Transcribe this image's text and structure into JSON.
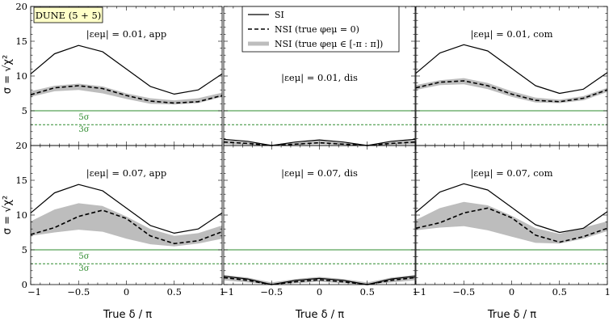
{
  "figure": {
    "badge": "DUNE (5 + 5)",
    "ylabel": "σ = √χ²",
    "xlabel": "True δ / π",
    "x_ticks": [
      "−1",
      "−0.5",
      "0",
      "0.5",
      "1"
    ],
    "y_ticks": [
      "0",
      "5",
      "10",
      "15",
      "20"
    ],
    "legend": [
      {
        "label": "SI",
        "style": "solid"
      },
      {
        "label": "NSI (true φeμ = 0)",
        "style": "dashed"
      },
      {
        "label": "NSI (true φeμ ∈ [-π : π])",
        "style": "band"
      }
    ],
    "sigma_lines": {
      "five": "5σ",
      "three": "3σ"
    },
    "colors": {
      "band": "#bdbdbd",
      "sigma": "#2e8b2e",
      "line": "#000000",
      "badge_bg": "#ffffc8"
    }
  },
  "chart_data": [
    {
      "type": "line",
      "panel": "top-left",
      "annotation": "|εeμ| = 0.01, app",
      "xlim": [
        -1,
        1
      ],
      "ylim": [
        0,
        20
      ],
      "show_sigma_labels": true,
      "x": [
        -1,
        -0.75,
        -0.5,
        -0.25,
        0,
        0.25,
        0.5,
        0.75,
        1
      ],
      "series": [
        {
          "name": "SI",
          "values": [
            10.3,
            13.2,
            14.4,
            13.5,
            11.0,
            8.5,
            7.4,
            8.0,
            10.3
          ]
        },
        {
          "name": "NSI (true φeμ = 0)",
          "values": [
            7.3,
            8.3,
            8.6,
            8.2,
            7.2,
            6.4,
            6.1,
            6.3,
            7.2
          ]
        }
      ],
      "band": {
        "name": "NSI (true φeμ ∈ [-π : π])",
        "lower": [
          7.0,
          7.8,
          8.0,
          7.5,
          6.7,
          6.0,
          5.9,
          6.1,
          7.0
        ],
        "upper": [
          7.8,
          8.6,
          8.9,
          8.5,
          7.5,
          6.8,
          6.5,
          6.8,
          7.6
        ]
      },
      "sigma_levels": [
        5,
        3
      ]
    },
    {
      "type": "line",
      "panel": "top-middle",
      "annotation": "|εeμ| = 0.01, dis",
      "xlim": [
        -1,
        1
      ],
      "ylim": [
        0,
        20
      ],
      "show_sigma_labels": false,
      "x": [
        -1,
        -0.75,
        -0.5,
        -0.25,
        0,
        0.25,
        0.5,
        0.75,
        1
      ],
      "series": [
        {
          "name": "SI",
          "values": [
            0.9,
            0.6,
            0.0,
            0.5,
            0.8,
            0.5,
            0.0,
            0.6,
            0.9
          ]
        },
        {
          "name": "NSI (true φeμ = 0)",
          "values": [
            0.5,
            0.3,
            0.0,
            0.2,
            0.4,
            0.2,
            0.0,
            0.3,
            0.5
          ]
        }
      ],
      "band": {
        "name": "NSI (true φeμ ∈ [-π : π])",
        "lower": [
          0.2,
          0.1,
          0.0,
          0.1,
          0.2,
          0.1,
          0.0,
          0.1,
          0.2
        ],
        "upper": [
          0.8,
          0.5,
          0.1,
          0.4,
          0.7,
          0.4,
          0.1,
          0.5,
          0.8
        ]
      },
      "sigma_levels": [
        5,
        3
      ]
    },
    {
      "type": "line",
      "panel": "top-right",
      "annotation": "|εeμ| = 0.01, com",
      "xlim": [
        -1,
        1
      ],
      "ylim": [
        0,
        20
      ],
      "show_sigma_labels": false,
      "x": [
        -1,
        -0.75,
        -0.5,
        -0.25,
        0,
        0.25,
        0.5,
        0.75,
        1
      ],
      "series": [
        {
          "name": "SI",
          "values": [
            10.4,
            13.3,
            14.5,
            13.6,
            11.1,
            8.6,
            7.5,
            8.1,
            10.5
          ]
        },
        {
          "name": "NSI (true φeμ = 0)",
          "values": [
            8.3,
            9.1,
            9.3,
            8.6,
            7.4,
            6.5,
            6.3,
            6.8,
            8.0
          ]
        }
      ],
      "band": {
        "name": "NSI (true φeμ ∈ [-π : π])",
        "lower": [
          8.0,
          8.7,
          8.8,
          8.1,
          7.0,
          6.2,
          6.1,
          6.5,
          7.7
        ],
        "upper": [
          8.7,
          9.4,
          9.7,
          9.0,
          7.8,
          6.9,
          6.6,
          7.1,
          8.3
        ]
      },
      "sigma_levels": [
        5,
        3
      ]
    },
    {
      "type": "line",
      "panel": "bottom-left",
      "annotation": "|εeμ| = 0.07, app",
      "xlim": [
        -1,
        1
      ],
      "ylim": [
        0,
        20
      ],
      "show_sigma_labels": true,
      "x": [
        -1,
        -0.75,
        -0.5,
        -0.25,
        0,
        0.25,
        0.5,
        0.75,
        1
      ],
      "series": [
        {
          "name": "SI",
          "values": [
            10.3,
            13.2,
            14.4,
            13.5,
            11.0,
            8.5,
            7.4,
            8.0,
            10.3
          ]
        },
        {
          "name": "NSI (true φeμ = 0)",
          "values": [
            7.2,
            8.2,
            9.8,
            10.7,
            9.5,
            7.0,
            5.9,
            6.3,
            7.6
          ]
        }
      ],
      "band": {
        "name": "NSI (true φeμ ∈ [-π : π])",
        "lower": [
          7.0,
          7.5,
          7.9,
          7.6,
          6.6,
          5.8,
          5.5,
          5.9,
          6.6
        ],
        "upper": [
          9.1,
          10.8,
          11.7,
          11.3,
          9.8,
          8.0,
          7.0,
          7.4,
          8.5
        ]
      },
      "sigma_levels": [
        5,
        3
      ]
    },
    {
      "type": "line",
      "panel": "bottom-middle",
      "annotation": "|εeμ| = 0.07, dis",
      "xlim": [
        -1,
        1
      ],
      "ylim": [
        0,
        20
      ],
      "show_sigma_labels": false,
      "x": [
        -1,
        -0.75,
        -0.5,
        -0.25,
        0,
        0.25,
        0.5,
        0.75,
        1
      ],
      "series": [
        {
          "name": "SI",
          "values": [
            1.2,
            0.8,
            0.0,
            0.6,
            0.9,
            0.6,
            0.0,
            0.8,
            1.2
          ]
        },
        {
          "name": "NSI (true φeμ = 0)",
          "values": [
            1.0,
            0.6,
            0.0,
            0.4,
            0.7,
            0.4,
            0.0,
            0.6,
            1.0
          ]
        }
      ],
      "band": {
        "name": "NSI (true φeμ ∈ [-π : π])",
        "lower": [
          0.6,
          0.3,
          0.0,
          0.2,
          0.4,
          0.2,
          0.0,
          0.3,
          0.6
        ],
        "upper": [
          1.4,
          1.0,
          0.3,
          0.8,
          1.1,
          0.8,
          0.3,
          1.0,
          1.4
        ]
      },
      "sigma_levels": [
        5,
        3
      ]
    },
    {
      "type": "line",
      "panel": "bottom-right",
      "annotation": "|εeμ| = 0.07, com",
      "xlim": [
        -1,
        1
      ],
      "ylim": [
        0,
        20
      ],
      "show_sigma_labels": false,
      "x": [
        -1,
        -0.75,
        -0.5,
        -0.25,
        0,
        0.25,
        0.5,
        0.75,
        1
      ],
      "series": [
        {
          "name": "SI",
          "values": [
            10.4,
            13.3,
            14.5,
            13.6,
            11.1,
            8.6,
            7.5,
            8.1,
            10.5
          ]
        },
        {
          "name": "NSI (true φeμ = 0)",
          "values": [
            8.1,
            8.9,
            10.3,
            11.0,
            9.6,
            7.1,
            6.1,
            6.9,
            8.1
          ]
        }
      ],
      "band": {
        "name": "NSI (true φeμ ∈ [-π : π])",
        "lower": [
          7.8,
          8.2,
          8.4,
          7.8,
          6.9,
          6.0,
          5.9,
          6.6,
          7.7
        ],
        "upper": [
          9.3,
          11.0,
          11.9,
          11.4,
          9.9,
          8.1,
          7.3,
          8.2,
          9.1
        ]
      },
      "sigma_levels": [
        5,
        3
      ]
    }
  ]
}
